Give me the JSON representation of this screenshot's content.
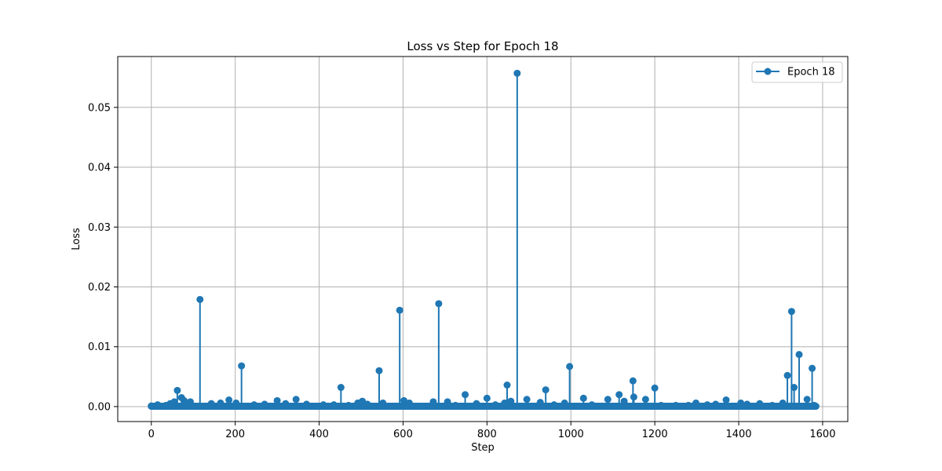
{
  "chart_data": {
    "type": "line",
    "title": "Loss vs Step for Epoch 18",
    "xlabel": "Step",
    "ylabel": "Loss",
    "xlim": [
      -80,
      1660
    ],
    "ylim": [
      -0.0025,
      0.0585
    ],
    "xticks": [
      0,
      200,
      400,
      600,
      800,
      1000,
      1200,
      1400,
      1600
    ],
    "yticks": [
      0.0,
      0.01,
      0.02,
      0.03,
      0.04,
      0.05
    ],
    "xtick_labels": [
      "0",
      "200",
      "400",
      "600",
      "800",
      "1000",
      "1200",
      "1400",
      "1600"
    ],
    "ytick_labels": [
      "0.00",
      "0.01",
      "0.02",
      "0.03",
      "0.04",
      "0.05"
    ],
    "grid": true,
    "legend_position": "top-right",
    "color": "#1f77b4",
    "series": [
      {
        "name": "Epoch 18",
        "x_range": [
          0,
          1584
        ],
        "baseline": 5e-05,
        "x": [
          0,
          15,
          35,
          45,
          55,
          62,
          72,
          78,
          93,
          116,
          143,
          165,
          185,
          202,
          215,
          245,
          270,
          300,
          320,
          345,
          370,
          410,
          435,
          452,
          470,
          492,
          503,
          515,
          543,
          552,
          592,
          602,
          615,
          672,
          685,
          706,
          725,
          748,
          775,
          800,
          820,
          842,
          848,
          857,
          872,
          895,
          927,
          940,
          960,
          985,
          997,
          1030,
          1050,
          1088,
          1115,
          1127,
          1148,
          1150,
          1178,
          1200,
          1215,
          1250,
          1280,
          1298,
          1325,
          1345,
          1370,
          1405,
          1420,
          1450,
          1480,
          1505,
          1516,
          1526,
          1532,
          1544,
          1563,
          1575,
          1580
        ],
        "values": [
          0.0001,
          0.0003,
          0.0002,
          0.0005,
          0.0008,
          0.0027,
          0.0015,
          0.001,
          0.0008,
          0.0179,
          0.0005,
          0.0006,
          0.0011,
          0.0006,
          0.0068,
          0.0003,
          0.0004,
          0.001,
          0.0005,
          0.0012,
          0.0004,
          0.0003,
          0.0003,
          0.0032,
          0.0002,
          0.0006,
          0.0009,
          0.0004,
          0.006,
          0.0006,
          0.0161,
          0.001,
          0.0006,
          0.0008,
          0.0172,
          0.0008,
          0.0002,
          0.002,
          0.0005,
          0.0014,
          0.0003,
          0.0006,
          0.0036,
          0.0009,
          0.0557,
          0.0012,
          0.0007,
          0.0028,
          0.0003,
          0.0006,
          0.0067,
          0.0014,
          0.0003,
          0.0012,
          0.002,
          0.0009,
          0.0043,
          0.0016,
          0.0012,
          0.0031,
          0.0002,
          0.0002,
          0.0002,
          0.0006,
          0.0003,
          0.0004,
          0.0011,
          0.0006,
          0.0004,
          0.0005,
          0.0002,
          0.0006,
          0.0052,
          0.0159,
          0.0032,
          0.0087,
          0.0012,
          0.0064,
          0.0002
        ]
      }
    ]
  }
}
